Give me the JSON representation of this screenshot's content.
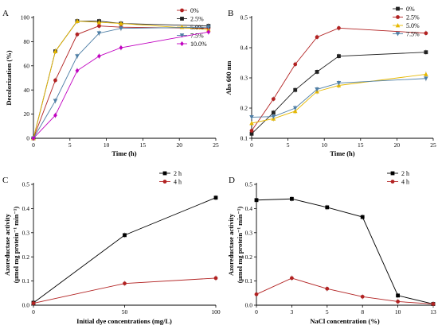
{
  "chart_data": [
    {
      "id": "A",
      "panel_label": "A",
      "type": "line",
      "xlabel": "Time (h)",
      "ylabel": "Decolorization (%)",
      "xlim": [
        0,
        25
      ],
      "ylim": [
        0,
        100
      ],
      "xticks": [
        0,
        5,
        10,
        15,
        20,
        25
      ],
      "yticks": [
        0,
        20,
        40,
        60,
        80,
        100
      ],
      "legend_position": "top-right",
      "x": [
        0,
        3,
        6,
        9,
        12,
        24
      ],
      "series": [
        {
          "name": "0%",
          "color": "#b22222",
          "marker": "circle",
          "values": [
            0,
            48,
            86,
            93,
            92,
            91
          ]
        },
        {
          "name": "2.5%",
          "color": "#222222",
          "marker": "square",
          "values": [
            0,
            72,
            97,
            97,
            95,
            93
          ]
        },
        {
          "name": "5.0%",
          "color": "#e6b800",
          "marker": "triangle",
          "values": [
            0,
            72,
            97,
            96,
            95,
            90
          ]
        },
        {
          "name": "7.5%",
          "color": "#4f7fa6",
          "marker": "triangle-down",
          "values": [
            0,
            31,
            68,
            87,
            91,
            92
          ]
        },
        {
          "name": "10.0%",
          "color": "#c000c0",
          "marker": "diamond",
          "values": [
            0,
            19,
            56,
            68,
            75,
            88
          ]
        }
      ]
    },
    {
      "id": "B",
      "panel_label": "B",
      "type": "line",
      "xlabel": "Time (h)",
      "ylabel": "Abs 600 nm",
      "xlim": [
        0,
        25
      ],
      "ylim": [
        0.1,
        0.5
      ],
      "xticks": [
        0,
        5,
        10,
        15,
        20,
        25
      ],
      "yticks": [
        0.1,
        0.2,
        0.3,
        0.4,
        0.5
      ],
      "legend_position": "top-right",
      "x": [
        0,
        3,
        6,
        9,
        12,
        24
      ],
      "series": [
        {
          "name": "0%",
          "color": "#222222",
          "marker": "square",
          "values": [
            0.115,
            0.185,
            0.26,
            0.32,
            0.372,
            0.385
          ]
        },
        {
          "name": "2.5%",
          "color": "#b22222",
          "marker": "circle",
          "values": [
            0.125,
            0.23,
            0.345,
            0.435,
            0.465,
            0.448
          ]
        },
        {
          "name": "5.0%",
          "color": "#e6b800",
          "marker": "triangle",
          "values": [
            0.15,
            0.165,
            0.19,
            0.255,
            0.275,
            0.312
          ]
        },
        {
          "name": "7.5%",
          "color": "#4f7fa6",
          "marker": "triangle-down",
          "values": [
            0.17,
            0.172,
            0.2,
            0.262,
            0.283,
            0.298
          ]
        }
      ]
    },
    {
      "id": "C",
      "panel_label": "C",
      "type": "line",
      "xlabel": "Initial dye concentrations (mg/L)",
      "ylabel_line1": "Azoreductase activity",
      "ylabel_line2": "(μmol mg protein⁻¹ min⁻¹)",
      "xlim": [
        0,
        100
      ],
      "ylim": [
        0,
        0.5
      ],
      "xticks": [
        0,
        50,
        100
      ],
      "yticks": [
        0,
        0.1,
        0.2,
        0.3,
        0.4,
        0.5
      ],
      "legend_position": "top-right",
      "x": [
        0,
        50,
        100
      ],
      "series": [
        {
          "name": "2 h",
          "color": "#000000",
          "marker": "square",
          "values": [
            0.01,
            0.29,
            0.445
          ]
        },
        {
          "name": "4 h",
          "color": "#b22222",
          "marker": "circle",
          "values": [
            0.008,
            0.09,
            0.112
          ]
        }
      ]
    },
    {
      "id": "D",
      "panel_label": "D",
      "type": "line",
      "xlabel": "NaCl concentration (%)",
      "ylabel_line1": "Azoreductase activity",
      "ylabel_line2": "(μmol mg protein⁻¹ min⁻¹)",
      "xlim": [
        0,
        12.5
      ],
      "ylim": [
        0,
        0.5
      ],
      "xticks": [
        0,
        2.5,
        5,
        7.5,
        10,
        12.5
      ],
      "yticks": [
        0,
        0.1,
        0.2,
        0.3,
        0.4,
        0.5
      ],
      "legend_position": "top-right",
      "x": [
        0,
        2.5,
        5,
        7.5,
        10,
        12.5
      ],
      "series": [
        {
          "name": "2 h",
          "color": "#000000",
          "marker": "square",
          "values": [
            0.435,
            0.44,
            0.405,
            0.365,
            0.04,
            0.005
          ]
        },
        {
          "name": "4 h",
          "color": "#b22222",
          "marker": "circle",
          "values": [
            0.045,
            0.112,
            0.068,
            0.035,
            0.015,
            0.005
          ]
        }
      ]
    }
  ]
}
